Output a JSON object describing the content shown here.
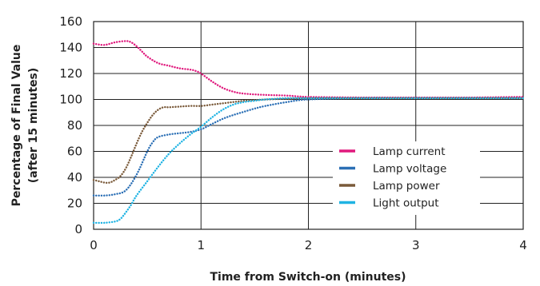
{
  "chart_data": {
    "type": "line",
    "title": "",
    "xlabel": "Time from Switch-on (minutes)",
    "ylabel_line1": "Percentage of Final Value",
    "ylabel_line2": "(after 15 minutes)",
    "xlim": [
      0,
      4
    ],
    "ylim": [
      0,
      160
    ],
    "x_ticks": [
      "0",
      "1",
      "2",
      "3",
      "4"
    ],
    "y_ticks": [
      "0",
      "20",
      "40",
      "60",
      "80",
      "100",
      "120",
      "140",
      "160"
    ],
    "grid": true,
    "legend_position": "lower-right",
    "line_style": "dotted",
    "series": [
      {
        "name": "Lamp current",
        "color": "#e0197d",
        "x": [
          0,
          0.1,
          0.2,
          0.3,
          0.35,
          0.4,
          0.45,
          0.5,
          0.6,
          0.7,
          0.8,
          0.9,
          0.95,
          1.0,
          1.1,
          1.2,
          1.3,
          1.4,
          1.6,
          1.8,
          2.0,
          2.5,
          3.0,
          3.5,
          4.0
        ],
        "y": [
          143,
          142,
          144,
          145,
          144,
          141,
          137,
          133,
          128,
          126,
          124,
          123,
          122,
          120,
          114,
          109,
          106,
          104.5,
          103.5,
          103,
          102,
          101.5,
          101.5,
          101.5,
          102
        ]
      },
      {
        "name": "Lamp voltage",
        "color": "#2b6fb5",
        "x": [
          0,
          0.1,
          0.2,
          0.3,
          0.4,
          0.5,
          0.55,
          0.6,
          0.7,
          0.8,
          0.9,
          1.0,
          1.1,
          1.2,
          1.3,
          1.4,
          1.5,
          1.6,
          1.8,
          2.0,
          2.5,
          3.0,
          3.5,
          4.0
        ],
        "y": [
          26,
          26,
          27,
          30,
          42,
          60,
          67,
          71,
          73,
          74,
          75,
          77,
          81,
          85,
          88,
          90.5,
          93,
          95,
          98,
          100,
          101,
          101,
          101,
          101
        ]
      },
      {
        "name": "Lamp power",
        "color": "#7a5a3a",
        "x": [
          0,
          0.05,
          0.1,
          0.15,
          0.2,
          0.25,
          0.3,
          0.35,
          0.4,
          0.45,
          0.5,
          0.55,
          0.6,
          0.65,
          0.7,
          0.8,
          0.9,
          1.0,
          1.1,
          1.2,
          1.3,
          1.4,
          1.5,
          1.6,
          1.8,
          2.0,
          2.5,
          3.0,
          3.5,
          4.0
        ],
        "y": [
          38,
          37,
          36,
          36,
          38,
          41,
          47,
          56,
          66,
          75,
          82,
          88,
          92,
          94,
          94,
          94.5,
          95,
          95,
          96,
          97,
          98,
          99,
          99.5,
          100,
          100.5,
          101,
          101,
          101,
          101,
          101
        ]
      },
      {
        "name": "Light output",
        "color": "#1fb3e3",
        "x": [
          0,
          0.1,
          0.2,
          0.25,
          0.3,
          0.35,
          0.4,
          0.5,
          0.6,
          0.7,
          0.8,
          0.9,
          1.0,
          1.1,
          1.2,
          1.3,
          1.4,
          1.5,
          1.6,
          1.8,
          2.0,
          2.5,
          3.0,
          3.5,
          4.0
        ],
        "y": [
          5,
          5,
          6,
          8,
          13,
          19,
          26,
          37,
          48,
          58,
          66,
          73,
          79,
          86,
          92,
          96,
          98,
          99,
          100,
          101,
          101,
          101,
          101,
          101,
          101
        ]
      }
    ]
  }
}
